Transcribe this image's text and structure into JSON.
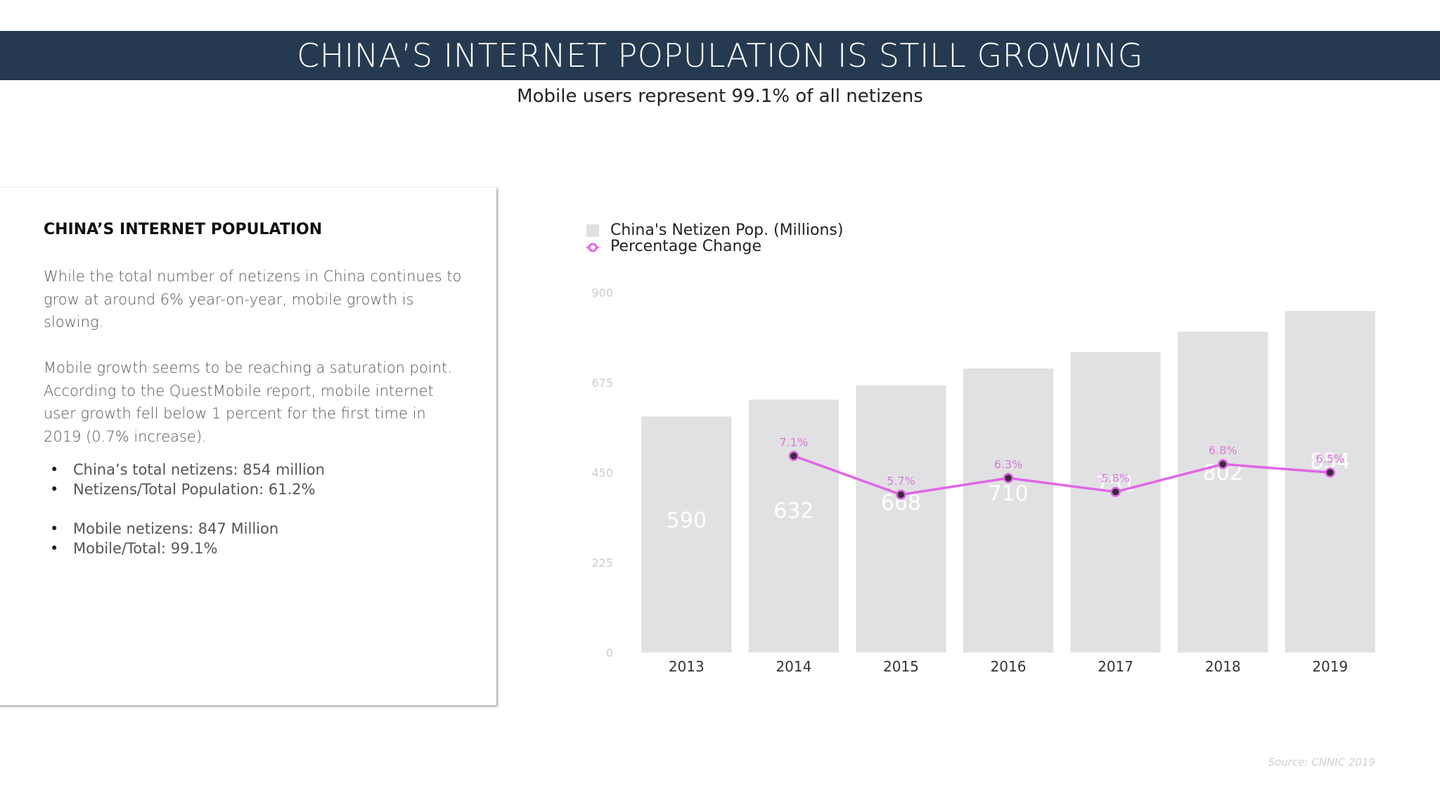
{
  "header": {
    "title": "CHINA’S INTERNET POPULATION IS STILL GROWING",
    "subtitle": "Mobile users represent 99.1% of all netizens"
  },
  "panel": {
    "heading": "CHINA’S INTERNET POPULATION",
    "paragraph1": "While the total number of netizens in China continues to grow at around 6% year-on-year, mobile growth is slowing.",
    "paragraph2": "Mobile growth seems to be reaching a saturation point. According to the QuestMobile report, mobile internet user growth fell below 1 percent for the first time in 2019 (0.7% increase).",
    "bullets_a": [
      "China’s total netizens: 854 million",
      "Netizens/Total Population: 61.2%"
    ],
    "bullets_b": [
      "Mobile netizens: 847 Million",
      "Mobile/Total: 99.1%"
    ]
  },
  "legend": {
    "bar_label": "China's Netizen Pop. (Millions)",
    "line_label": "Percentage Change"
  },
  "source": "Source: CNNIC 2019",
  "colors": {
    "bar": "#e1e1e3",
    "line": "#e066e6",
    "line_label": "#d77ad9",
    "bar_label": "#ffffff",
    "axis_tick": "#cccccc",
    "title_bar": "#253a50"
  },
  "chart_data": {
    "type": "bar",
    "categories": [
      "2013",
      "2014",
      "2015",
      "2016",
      "2017",
      "2018",
      "2019"
    ],
    "series": [
      {
        "name": "China's Netizen Pop. (Millions)",
        "type": "bar",
        "values": [
          590,
          632,
          668,
          710,
          751,
          802,
          854
        ]
      },
      {
        "name": "Percentage Change",
        "type": "line",
        "values": [
          null,
          7.1,
          5.7,
          6.3,
          5.8,
          6.8,
          6.5
        ],
        "labels": [
          "",
          "7.1%",
          "5.7%",
          "6.3%",
          "5.8%",
          "6.8%",
          "6.5%"
        ]
      }
    ],
    "y_ticks": [
      0,
      225,
      450,
      675,
      900
    ],
    "ylim": [
      0,
      900
    ],
    "line_ylim": [
      0,
      13
    ],
    "grid": false,
    "legend_position": "top-left"
  }
}
